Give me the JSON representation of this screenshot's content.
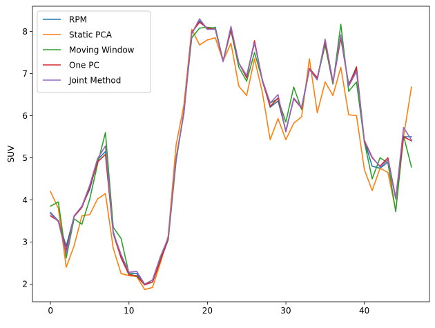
{
  "chart_data": {
    "type": "line",
    "title": "",
    "xlabel": "",
    "ylabel": "SUV",
    "xlim": [
      -2.3,
      48.3
    ],
    "ylim": [
      1.58,
      8.6
    ],
    "x_ticks": [
      0,
      10,
      20,
      30,
      40
    ],
    "y_ticks": [
      2,
      3,
      4,
      5,
      6,
      7,
      8
    ],
    "grid": false,
    "legend_position": "top-left",
    "x": [
      0,
      1,
      2,
      3,
      4,
      5,
      6,
      7,
      8,
      9,
      10,
      11,
      12,
      13,
      14,
      15,
      16,
      17,
      18,
      19,
      20,
      21,
      22,
      23,
      24,
      25,
      26,
      27,
      28,
      29,
      30,
      31,
      32,
      33,
      34,
      35,
      36,
      37,
      38,
      39,
      40,
      41,
      42,
      43,
      44,
      45,
      46
    ],
    "series": [
      {
        "name": "RPM",
        "color": "#1f77b4",
        "values": [
          3.7,
          3.5,
          2.9,
          3.6,
          3.85,
          4.25,
          4.95,
          5.15,
          3.25,
          2.65,
          2.25,
          2.25,
          1.98,
          2.05,
          2.55,
          3.05,
          4.95,
          6.05,
          7.95,
          8.25,
          8.05,
          8.1,
          7.3,
          8.1,
          7.25,
          6.95,
          7.75,
          6.85,
          6.2,
          6.35,
          5.65,
          6.4,
          6.2,
          7.1,
          6.85,
          7.8,
          6.8,
          7.85,
          6.75,
          7.1,
          5.4,
          4.8,
          4.75,
          4.9,
          4.05,
          5.5,
          5.5
        ]
      },
      {
        "name": "Static PCA",
        "color": "#ff7f0e",
        "values": [
          4.2,
          3.8,
          2.4,
          2.9,
          3.62,
          3.65,
          4.02,
          4.15,
          2.85,
          2.25,
          2.2,
          2.18,
          1.87,
          1.92,
          2.5,
          3.15,
          5.3,
          6.25,
          8.05,
          7.68,
          7.8,
          7.85,
          7.3,
          7.72,
          6.7,
          6.48,
          7.35,
          6.55,
          5.43,
          5.93,
          5.43,
          5.82,
          5.97,
          7.35,
          6.07,
          6.8,
          6.48,
          7.15,
          6.02,
          6.0,
          4.72,
          4.22,
          4.75,
          4.65,
          3.75,
          5.5,
          6.68
        ]
      },
      {
        "name": "Moving Window",
        "color": "#2ca02c",
        "values": [
          3.85,
          3.95,
          2.62,
          3.55,
          3.42,
          4.02,
          4.85,
          5.6,
          3.35,
          3.08,
          2.25,
          2.18,
          2.0,
          2.05,
          2.62,
          3.05,
          4.92,
          6.1,
          7.85,
          8.08,
          8.1,
          8.08,
          7.3,
          8.02,
          7.15,
          6.82,
          7.5,
          6.85,
          6.3,
          6.4,
          5.85,
          6.68,
          6.15,
          7.1,
          6.88,
          7.68,
          6.75,
          8.17,
          6.58,
          6.8,
          5.38,
          4.5,
          5.0,
          4.88,
          3.72,
          5.52,
          4.78
        ]
      },
      {
        "name": "One PC",
        "color": "#d62728",
        "values": [
          3.62,
          3.5,
          2.8,
          3.6,
          3.82,
          4.3,
          4.9,
          5.08,
          3.2,
          2.62,
          2.22,
          2.2,
          1.98,
          2.05,
          2.55,
          3.08,
          4.98,
          6.08,
          7.98,
          8.22,
          8.08,
          8.05,
          7.3,
          8.05,
          7.25,
          6.9,
          7.78,
          6.82,
          6.22,
          6.42,
          5.62,
          6.4,
          6.18,
          7.12,
          6.9,
          7.75,
          6.78,
          7.85,
          6.72,
          7.16,
          5.38,
          5.0,
          4.8,
          5.0,
          4.05,
          5.5,
          5.4
        ]
      },
      {
        "name": "Joint Method",
        "color": "#9467bd",
        "values": [
          3.68,
          3.48,
          2.72,
          3.62,
          3.85,
          4.35,
          4.98,
          5.28,
          3.22,
          2.7,
          2.28,
          2.3,
          2.0,
          2.1,
          2.65,
          3.1,
          5.0,
          6.05,
          7.95,
          8.3,
          8.05,
          8.05,
          7.28,
          8.12,
          7.25,
          6.95,
          7.72,
          6.85,
          6.3,
          6.5,
          5.62,
          6.42,
          6.2,
          7.1,
          6.85,
          7.82,
          6.8,
          7.92,
          6.7,
          7.05,
          5.42,
          5.02,
          4.78,
          4.95,
          4.02,
          5.72,
          5.42
        ]
      }
    ]
  }
}
